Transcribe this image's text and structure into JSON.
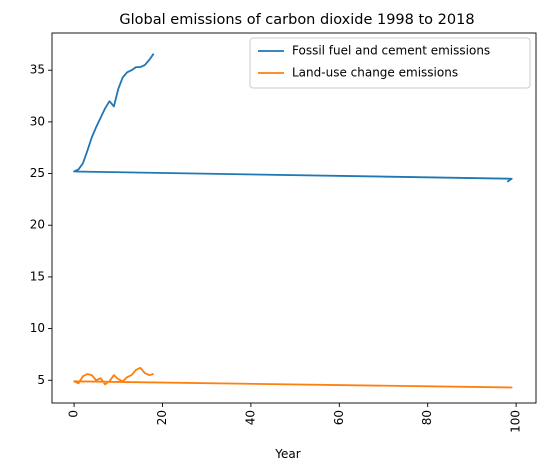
{
  "chart_data": {
    "type": "line",
    "title": "Global emissions of carbon dioxide 1998 to 2018",
    "xlabel": "Year",
    "ylabel": "",
    "xlim": [
      -5,
      104.5
    ],
    "ylim": [
      2.8,
      38.6
    ],
    "xticks": [
      0,
      20,
      40,
      60,
      80,
      100
    ],
    "yticks": [
      5,
      10,
      15,
      20,
      25,
      30,
      35
    ],
    "xtick_rotation": 90,
    "grid": false,
    "legend": "top-right",
    "series": [
      {
        "name": "Fossil fuel and cement emissions",
        "color": "#1f77b4",
        "x": [
          98,
          99,
          0,
          1,
          2,
          3,
          4,
          5,
          6,
          7,
          8,
          9,
          10,
          11,
          12,
          13,
          14,
          15,
          16,
          17,
          18
        ],
        "y": [
          24.2,
          24.5,
          25.2,
          25.4,
          26.0,
          27.2,
          28.5,
          29.5,
          30.4,
          31.3,
          32.0,
          31.5,
          33.2,
          34.3,
          34.8,
          35.0,
          35.3,
          35.3,
          35.5,
          36.0,
          36.6
        ]
      },
      {
        "name": "Land-use change emissions",
        "color": "#ff7f0e",
        "x": [
          98,
          99,
          0,
          1,
          2,
          3,
          4,
          5,
          6,
          7,
          8,
          9,
          10,
          11,
          12,
          13,
          14,
          15,
          16,
          17,
          18
        ],
        "y": [
          4.3,
          4.3,
          4.9,
          4.7,
          5.4,
          5.6,
          5.5,
          5.0,
          5.2,
          4.6,
          4.9,
          5.5,
          5.1,
          4.9,
          5.3,
          5.5,
          6.0,
          6.2,
          5.7,
          5.5,
          5.6
        ]
      }
    ]
  }
}
